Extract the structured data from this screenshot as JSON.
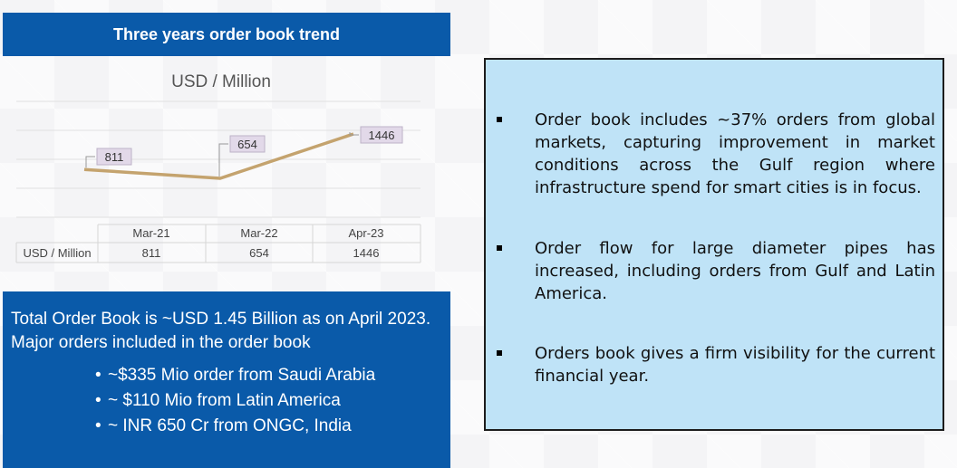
{
  "header": {
    "title": "Three years order book trend"
  },
  "chart_data": {
    "type": "line",
    "unit_label": "USD / Million",
    "categories": [
      "Mar-21",
      "Mar-22",
      "Apr-23"
    ],
    "series": [
      {
        "name": "USD / Million",
        "values": [
          811,
          654,
          1446
        ]
      }
    ],
    "data_labels": [
      "811",
      "654",
      "1446"
    ],
    "table_row_label": "USD / Million",
    "table_values": [
      "811",
      "654",
      "1446"
    ],
    "grid": true,
    "legend": "none",
    "line_color": "#c4a36e"
  },
  "summary": {
    "lead": "Total Order Book is ~USD 1.45 Billion as on April 2023. Major orders included in the order book",
    "items": [
      "~$335 Mio order from Saudi Arabia",
      "~ $110 Mio from Latin America",
      "~ INR 650 Cr from ONGC, India"
    ]
  },
  "notes": [
    "Order book includes ~37% orders from global markets, capturing improvement in market conditions across the Gulf region where infrastructure spend for smart cities is in focus.",
    "Order flow for large diameter pipes has increased, including orders from Gulf and Latin America.",
    "Orders book gives a firm visibility for the current financial year."
  ],
  "colors": {
    "accent": "#0a5aa9",
    "panel": "#bfe3f7"
  }
}
